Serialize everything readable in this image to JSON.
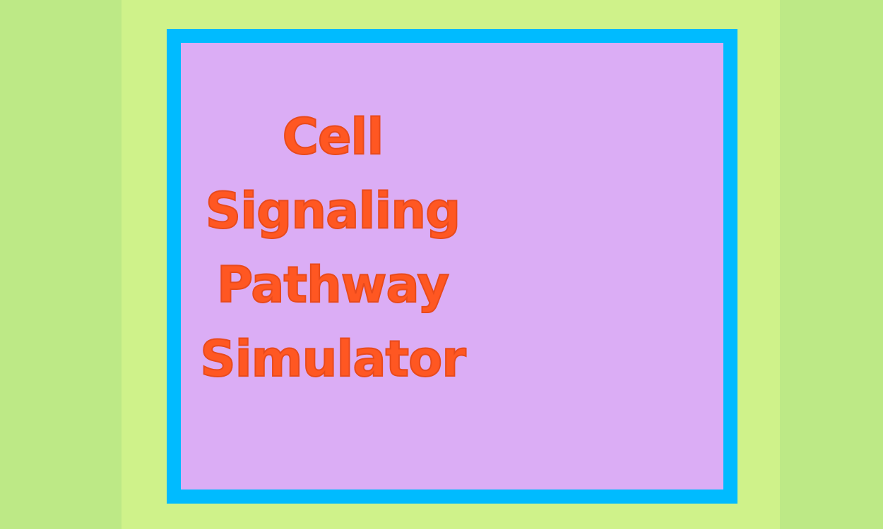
{
  "colors": {
    "outer_background": "#bde986",
    "center_band": "#cff28a",
    "panel_border": "#00bbff",
    "panel_fill": "#dbadf5",
    "title_color": "#ff5722"
  },
  "title": {
    "lines": [
      "Cell",
      "Signaling",
      "Pathway",
      "Simulator"
    ]
  }
}
